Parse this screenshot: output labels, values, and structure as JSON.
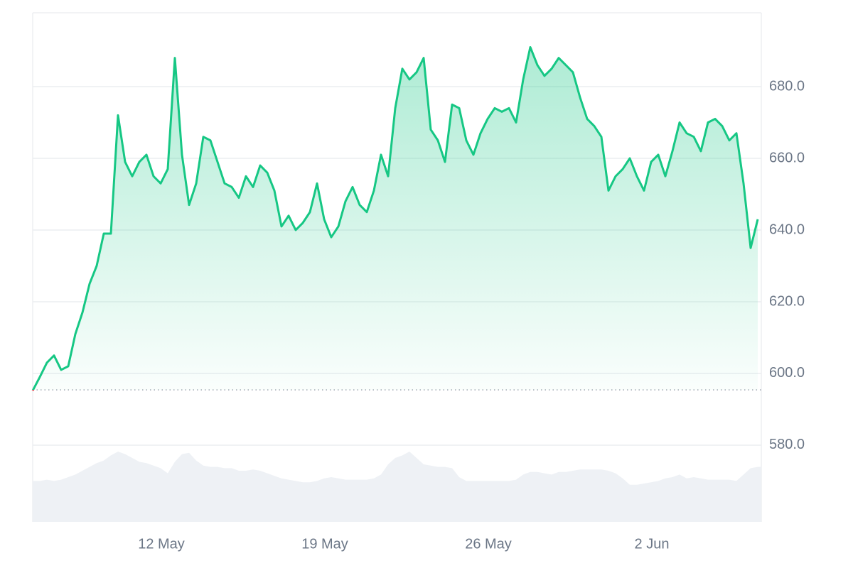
{
  "chart_data": {
    "type": "line",
    "xlim": [
      0,
      102.5
    ],
    "xticks": [
      {
        "value": 18.1,
        "label": "12 May"
      },
      {
        "value": 41.1,
        "label": "19 May"
      },
      {
        "value": 64.1,
        "label": "26 May"
      },
      {
        "value": 87.1,
        "label": "2 Jun"
      }
    ],
    "ylim": [
      558.6,
      700.6
    ],
    "yticks": [
      {
        "value": 580,
        "label": "580.0"
      },
      {
        "value": 600,
        "label": "600.0"
      },
      {
        "value": 620,
        "label": "620.0"
      },
      {
        "value": 640,
        "label": "640.0"
      },
      {
        "value": 660,
        "label": "660.0"
      },
      {
        "value": 680,
        "label": "680.0"
      }
    ],
    "grid": true,
    "baseline": 595.4,
    "up_color": "#16c784",
    "down_color": "#ea3943",
    "series": [
      {
        "color": "#16c784",
        "values": [
          595.2,
          599,
          603,
          605,
          601,
          602,
          611,
          617,
          625,
          630,
          639,
          639,
          672,
          659,
          655,
          659,
          661,
          655,
          653,
          657,
          688,
          661,
          647,
          653,
          666,
          665,
          659,
          653,
          652,
          649,
          655,
          652,
          658,
          656,
          651,
          641,
          644,
          640,
          642,
          645,
          653,
          643,
          638,
          641,
          648,
          652,
          647,
          645,
          651,
          661,
          655,
          674,
          685,
          682,
          684,
          688,
          668,
          665,
          659,
          675,
          674,
          665,
          661,
          667,
          671,
          674,
          673,
          674,
          670,
          682,
          691,
          686,
          683,
          685,
          688,
          686,
          684,
          677,
          671,
          669,
          666,
          651,
          655,
          657,
          660,
          655,
          651,
          659,
          661,
          655,
          662,
          670,
          667,
          666,
          662,
          670,
          671,
          669,
          665,
          667,
          653,
          635,
          643
        ]
      }
    ],
    "volume": {
      "color": "#eef1f5",
      "ylim": [
        0,
        100
      ],
      "values": [
        32,
        32,
        33,
        32,
        33,
        35,
        37,
        40,
        43,
        46,
        48,
        52,
        55,
        53,
        50,
        47,
        46,
        44,
        42,
        38,
        47,
        53,
        54,
        48,
        44,
        43,
        43,
        42,
        42,
        40,
        40,
        41,
        40,
        38,
        36,
        34,
        33,
        32,
        31,
        31,
        32,
        34,
        35,
        34,
        33,
        33,
        33,
        33,
        34,
        37,
        45,
        50,
        52,
        55,
        50,
        45,
        44,
        43,
        43,
        42,
        35,
        32,
        32,
        32,
        32,
        32,
        32,
        32,
        33,
        37,
        39,
        39,
        38,
        37,
        39,
        39,
        40,
        41,
        41,
        41,
        41,
        40,
        38,
        34,
        29,
        29,
        30,
        31,
        32,
        34,
        35,
        37,
        34,
        35,
        34,
        33,
        33,
        33,
        33,
        32,
        37,
        42,
        43
      ]
    }
  }
}
